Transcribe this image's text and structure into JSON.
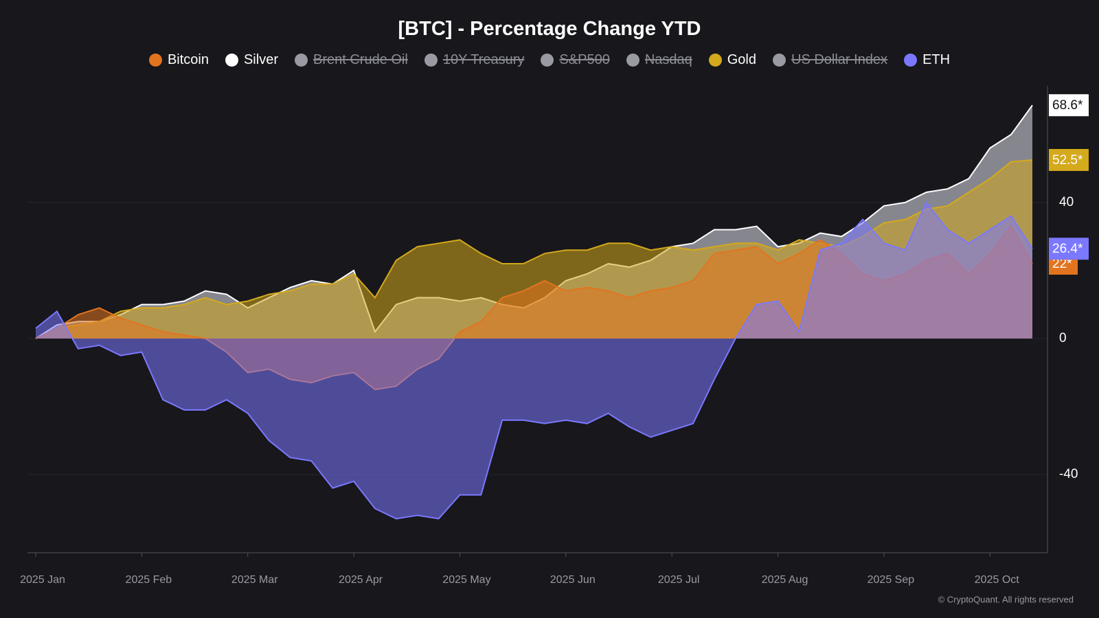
{
  "chart_data": {
    "type": "area",
    "title": "[BTC] - Percentage Change YTD",
    "legend": "top",
    "grid": true,
    "categories": [
      "2025 Jan",
      null,
      null,
      null,
      null,
      "2025 Feb",
      null,
      null,
      null,
      null,
      "2025 Mar",
      null,
      null,
      null,
      null,
      "2025 Apr",
      null,
      null,
      null,
      null,
      "2025 May",
      null,
      null,
      null,
      null,
      "2025 Jun",
      null,
      null,
      null,
      null,
      "2025 Jul",
      null,
      null,
      null,
      null,
      "2025 Aug",
      null,
      null,
      null,
      null,
      "2025 Sep",
      null,
      null,
      null,
      null,
      "2025 Oct",
      null,
      null
    ],
    "ylim": [
      -62.6,
      74.3
    ],
    "yticks": [
      -40,
      0,
      40
    ],
    "series": [
      {
        "name": "Bitcoin",
        "color": "#e3741f",
        "visible": true,
        "values": [
          0,
          3,
          7,
          9,
          6,
          4,
          2,
          1,
          0,
          -4,
          -10,
          -9,
          -12,
          -13,
          -11,
          -10,
          -15,
          -14,
          -9,
          -6,
          2,
          5,
          12,
          14,
          17,
          14,
          15,
          14,
          12,
          14,
          15,
          17,
          25,
          26,
          27,
          22,
          25,
          29,
          25,
          19,
          17,
          19,
          23,
          25,
          19,
          25,
          33,
          22
        ],
        "value_labels": [
          null,
          null,
          null,
          null,
          null,
          null,
          null,
          null,
          null,
          null,
          null,
          null,
          null,
          null,
          null,
          null,
          null,
          null,
          null,
          null,
          null,
          null,
          null,
          null,
          null,
          null,
          null,
          null,
          null,
          null,
          null,
          null,
          null,
          null,
          null,
          null,
          null,
          null,
          null,
          null,
          null,
          null,
          null,
          null,
          null,
          null,
          null,
          "22*"
        ]
      },
      {
        "name": "Silver",
        "color": "#ffffff",
        "visible": true,
        "values": [
          0,
          4,
          5,
          5,
          7,
          10,
          10,
          11,
          14,
          13,
          9,
          12,
          15,
          17,
          16,
          20,
          2,
          10,
          12,
          12,
          11,
          12,
          10,
          9,
          12,
          17,
          19,
          22,
          21,
          23,
          27,
          28,
          32,
          32,
          33,
          27,
          28,
          31,
          30,
          34,
          39,
          40,
          43,
          44,
          47,
          56,
          60,
          68.6
        ],
        "value_labels": [
          null,
          null,
          null,
          null,
          null,
          null,
          null,
          null,
          null,
          null,
          null,
          null,
          null,
          null,
          null,
          null,
          null,
          null,
          null,
          null,
          null,
          null,
          null,
          null,
          null,
          null,
          null,
          null,
          null,
          null,
          null,
          null,
          null,
          null,
          null,
          null,
          null,
          null,
          null,
          null,
          null,
          null,
          null,
          null,
          null,
          null,
          null,
          "68.6*"
        ]
      },
      {
        "name": "Brent Crude Oil",
        "color": "#9a9aa3",
        "visible": false
      },
      {
        "name": "10Y Treasury",
        "color": "#9a9aa3",
        "visible": false
      },
      {
        "name": "S&P500",
        "color": "#9a9aa3",
        "visible": false
      },
      {
        "name": "Nasdaq",
        "color": "#9a9aa3",
        "visible": false
      },
      {
        "name": "Gold",
        "color": "#d4a91c",
        "visible": true,
        "values": [
          0,
          3,
          4,
          5,
          8,
          9,
          9,
          10,
          12,
          10,
          11,
          13,
          14,
          16,
          16,
          19,
          12,
          23,
          27,
          28,
          29,
          25,
          22,
          22,
          25,
          26,
          26,
          28,
          28,
          26,
          27,
          26,
          27,
          28,
          28,
          26,
          29,
          28,
          27,
          30,
          34,
          35,
          38,
          39,
          43,
          47,
          52,
          52.5
        ],
        "value_labels": [
          null,
          null,
          null,
          null,
          null,
          null,
          null,
          null,
          null,
          null,
          null,
          null,
          null,
          null,
          null,
          null,
          null,
          null,
          null,
          null,
          null,
          null,
          null,
          null,
          null,
          null,
          null,
          null,
          null,
          null,
          null,
          null,
          null,
          null,
          null,
          null,
          null,
          null,
          null,
          null,
          null,
          null,
          null,
          null,
          null,
          null,
          null,
          "52.5*"
        ]
      },
      {
        "name": "US Dollar Index",
        "color": "#9a9aa3",
        "visible": false
      },
      {
        "name": "ETH",
        "color": "#7b78ff",
        "visible": true,
        "values": [
          3,
          8,
          -3,
          -2,
          -5,
          -4,
          -18,
          -21,
          -21,
          -18,
          -22,
          -30,
          -35,
          -36,
          -44,
          -42,
          -50,
          -53,
          -52,
          -53,
          -46,
          -46,
          -24,
          -24,
          -25,
          -24,
          -25,
          -22,
          -26,
          -29,
          -27,
          -25,
          -12,
          0,
          10,
          11,
          2,
          26,
          28,
          35,
          28,
          26,
          40,
          32,
          28,
          32,
          36,
          26.4
        ],
        "value_labels": [
          null,
          null,
          null,
          null,
          null,
          null,
          null,
          null,
          null,
          null,
          null,
          null,
          null,
          null,
          null,
          null,
          null,
          null,
          null,
          null,
          null,
          null,
          null,
          null,
          null,
          null,
          null,
          null,
          null,
          null,
          null,
          null,
          null,
          null,
          null,
          null,
          null,
          null,
          null,
          null,
          null,
          null,
          null,
          null,
          null,
          null,
          null,
          "26.4*"
        ]
      }
    ],
    "draw_order": [
      1,
      6,
      0,
      8
    ],
    "footer": "© CryptoQuant. All rights reserved"
  }
}
